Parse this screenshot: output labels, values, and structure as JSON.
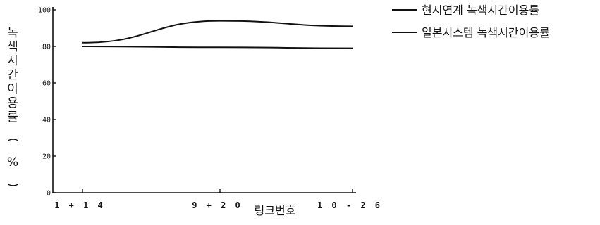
{
  "chart_data": {
    "type": "line",
    "categories": [
      "1+14",
      "9+20",
      "10-26"
    ],
    "series": [
      {
        "name": "현시연계 녹색시간이용률",
        "values": [
          82,
          94,
          91
        ],
        "color": "#111111"
      },
      {
        "name": "일본시스템 녹색시간이용률",
        "values": [
          80,
          79.5,
          79
        ],
        "color": "#111111"
      }
    ],
    "x_tick_labels": [
      "1 + 1 4",
      "9 + 2 0",
      "1 0 - 2 6"
    ],
    "y_ticks": [
      "0",
      "20",
      "40",
      "60",
      "80",
      "100"
    ],
    "ylim": [
      0,
      100
    ],
    "xlabel": "링크번호",
    "ylabel": "녹색시간이용률 (%)",
    "ylabel_chars": [
      "녹",
      "색",
      "시",
      "간",
      "이",
      "용",
      "률",
      "(",
      "%",
      ")"
    ],
    "grid": false,
    "legend_position": "top-right"
  }
}
